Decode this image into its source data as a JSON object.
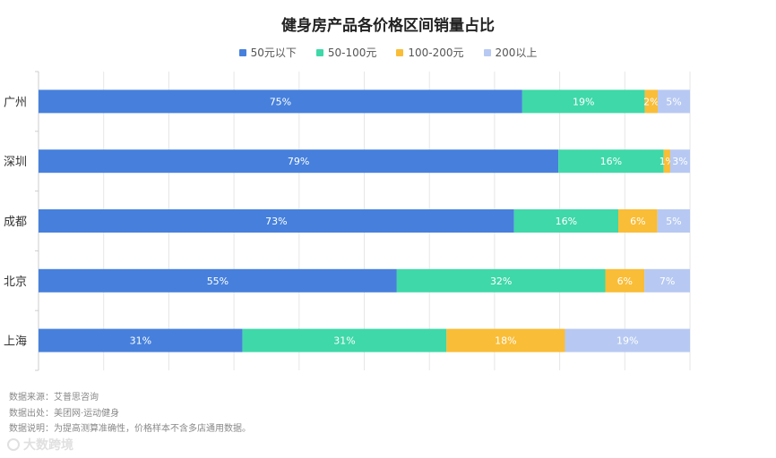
{
  "chart_data": {
    "type": "bar",
    "orientation": "horizontal",
    "stacked": "percent",
    "title": "健身房产品各价格区间销量占比",
    "categories": [
      "广州",
      "深圳",
      "成都",
      "北京",
      "上海"
    ],
    "series": [
      {
        "name": "50元以下",
        "values": [
          75,
          79,
          73,
          55,
          31
        ],
        "labels": [
          "75%",
          "79%",
          "73%",
          "55%",
          "31%"
        ],
        "color": "#4680dc"
      },
      {
        "name": "50-100元",
        "values": [
          19,
          16,
          16,
          32,
          31
        ],
        "labels": [
          "19%",
          "16%",
          "16%",
          "32%",
          "31%"
        ],
        "color": "#3fd8a8"
      },
      {
        "name": "100-200元",
        "values": [
          2,
          1,
          6,
          6,
          18
        ],
        "labels": [
          "2%",
          "1%",
          "6%",
          "6%",
          "18%"
        ],
        "color": "#f9bd37"
      },
      {
        "name": "200以上",
        "values": [
          5,
          3,
          5,
          7,
          19
        ],
        "labels": [
          "5%",
          "3%",
          "5%",
          "7%",
          "19%"
        ],
        "color": "#b7c9f2"
      }
    ],
    "xlim": [
      0,
      100
    ],
    "grid": true,
    "legend_position": "top-center"
  },
  "footer": {
    "source": "数据来源：艾普思咨询",
    "origin": "数据出处：美团网·运动健身",
    "note": "数据说明：为提高测算准确性，价格样本不含多店通用数据。"
  },
  "branding": {
    "logo_text": "大数跨境"
  },
  "colors": {
    "gridline": "#e6e6e6",
    "axis": "#cccccc",
    "category_label": "#333333"
  }
}
